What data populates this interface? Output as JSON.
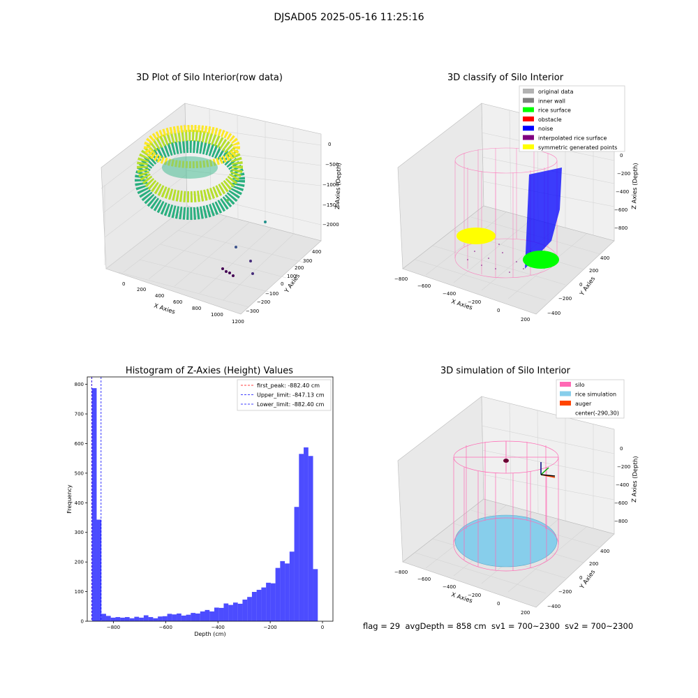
{
  "figure": {
    "title": "DJSAD05 2025-05-16 11:25:16",
    "footer": "flag = 29  avgDepth = 858 cm  sv1 = 700~2300  sv2 = 700~2300"
  },
  "panels": {
    "raw": {
      "title": "3D Plot of Silo Interior(row data)",
      "xlabel": "X Axies",
      "ylabel": "Y Axies",
      "zlabel": "Z Axies (Depth)",
      "xticks": [
        "0",
        "200",
        "400",
        "600",
        "800",
        "1000",
        "1200"
      ],
      "yticks": [
        "400",
        "300",
        "200",
        "100",
        "0",
        "−100",
        "−200",
        "−300"
      ],
      "zticks": [
        "0",
        "−500",
        "−1000",
        "−1500",
        "−2000"
      ]
    },
    "classify": {
      "title": "3D classify of Silo Interior",
      "xlabel": "X Axies",
      "ylabel": "Y Axies",
      "zlabel": "Z Axies (Depth)",
      "xticks": [
        "−800",
        "−600",
        "−400",
        "−200",
        "0",
        "200"
      ],
      "yticks": [
        "400",
        "200",
        "0",
        "−200",
        "−400"
      ],
      "zticks": [
        "0",
        "−200",
        "−400",
        "−600",
        "−800"
      ],
      "legend": [
        {
          "label": "original data",
          "color": "#b3b3b3"
        },
        {
          "label": "inner wall",
          "color": "#808080"
        },
        {
          "label": "rice surface",
          "color": "#00ff00"
        },
        {
          "label": "obstacle",
          "color": "#ff0000"
        },
        {
          "label": "noise",
          "color": "#0000ff"
        },
        {
          "label": "interpolated rice surface",
          "color": "#800080"
        },
        {
          "label": "symmetric generated points",
          "color": "#ffff00"
        }
      ]
    },
    "simulation": {
      "title": "3D simulation of Silo Interior",
      "xlabel": "X Axies",
      "ylabel": "Y Axies",
      "zlabel": "Z Axies (Depth)",
      "xticks": [
        "−800",
        "−600",
        "−400",
        "−200",
        "0",
        "200"
      ],
      "yticks": [
        "400",
        "200",
        "0",
        "−200",
        "−400"
      ],
      "zticks": [
        "0",
        "−200",
        "−400",
        "−600",
        "−800"
      ],
      "legend": [
        {
          "label": "silo",
          "color": "#ff69b4"
        },
        {
          "label": "rice simulation",
          "color": "#87ceeb"
        },
        {
          "label": "auger",
          "color": "#ff4500"
        },
        {
          "label": "center(-290,30)",
          "color": ""
        }
      ]
    }
  },
  "chart_data": {
    "type": "bar",
    "title": "Histogram of Z-Axies (Height) Values",
    "xlabel": "Depth (cm)",
    "ylabel": "Frequency",
    "xlim": [
      -900,
      40
    ],
    "ylim": [
      0,
      825
    ],
    "xticks": [
      -800,
      -600,
      -400,
      -200,
      0
    ],
    "yticks": [
      0,
      100,
      200,
      300,
      400,
      500,
      600,
      700,
      800
    ],
    "bar_color": "#0000ff",
    "bin_start": -900,
    "bin_width": 18,
    "counts": [
      0,
      787,
      343,
      25,
      18,
      12,
      14,
      12,
      14,
      10,
      15,
      12,
      20,
      14,
      10,
      16,
      17,
      25,
      23,
      26,
      19,
      22,
      28,
      26,
      33,
      38,
      33,
      46,
      45,
      60,
      55,
      63,
      59,
      73,
      82,
      99,
      106,
      114,
      130,
      128,
      180,
      203,
      195,
      235,
      386,
      565,
      587,
      558,
      176
    ],
    "vlines": [
      {
        "x": -882.4,
        "color": "#ff0000",
        "label": "first_peak: -882.40 cm"
      },
      {
        "x": -847.13,
        "color": "#0000ff",
        "label": "Upper_limit: -847.13 cm"
      },
      {
        "x": -882.4,
        "color": "#0000ff",
        "label": "Lower_limit: -882.40 cm"
      }
    ],
    "legend_position": "top-right"
  }
}
